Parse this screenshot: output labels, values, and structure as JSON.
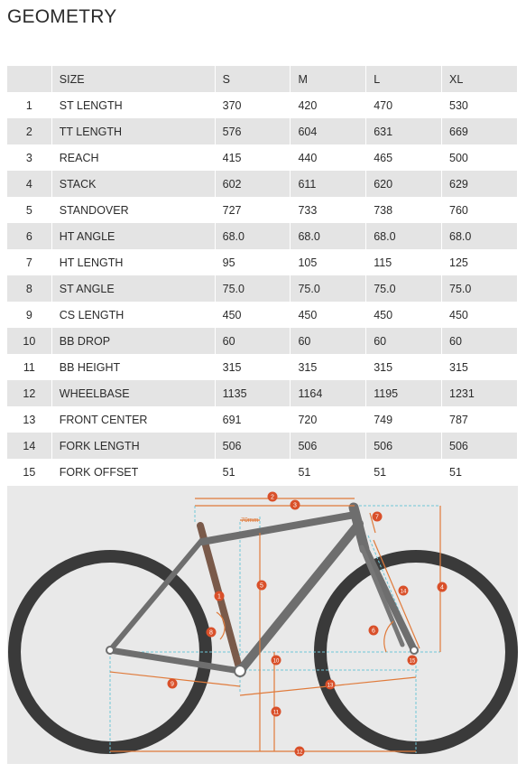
{
  "page": {
    "title": "GEOMETRY"
  },
  "table": {
    "headers": [
      "",
      "SIZE",
      "S",
      "M",
      "L",
      "XL"
    ],
    "rows": [
      {
        "no": "1",
        "label": "ST LENGTH",
        "values": [
          "370",
          "420",
          "470",
          "530"
        ]
      },
      {
        "no": "2",
        "label": "TT LENGTH",
        "values": [
          "576",
          "604",
          "631",
          "669"
        ]
      },
      {
        "no": "3",
        "label": "REACH",
        "values": [
          "415",
          "440",
          "465",
          "500"
        ]
      },
      {
        "no": "4",
        "label": "STACK",
        "values": [
          "602",
          "611",
          "620",
          "629"
        ]
      },
      {
        "no": "5",
        "label": "STANDOVER",
        "values": [
          "727",
          "733",
          "738",
          "760"
        ]
      },
      {
        "no": "6",
        "label": "HT ANGLE",
        "values": [
          "68.0",
          "68.0",
          "68.0",
          "68.0"
        ]
      },
      {
        "no": "7",
        "label": "HT LENGTH",
        "values": [
          "95",
          "105",
          "115",
          "125"
        ]
      },
      {
        "no": "8",
        "label": "ST ANGLE",
        "values": [
          "75.0",
          "75.0",
          "75.0",
          "75.0"
        ]
      },
      {
        "no": "9",
        "label": "CS LENGTH",
        "values": [
          "450",
          "450",
          "450",
          "450"
        ]
      },
      {
        "no": "10",
        "label": "BB DROP",
        "values": [
          "60",
          "60",
          "60",
          "60"
        ]
      },
      {
        "no": "11",
        "label": "BB HEIGHT",
        "values": [
          "315",
          "315",
          "315",
          "315"
        ]
      },
      {
        "no": "12",
        "label": "WHEELBASE",
        "values": [
          "1135",
          "1164",
          "1195",
          "1231"
        ]
      },
      {
        "no": "13",
        "label": "FRONT CENTER",
        "values": [
          "691",
          "720",
          "749",
          "787"
        ]
      },
      {
        "no": "14",
        "label": "FORK LENGTH",
        "values": [
          "506",
          "506",
          "506",
          "506"
        ]
      },
      {
        "no": "15",
        "label": "FORK OFFSET",
        "values": [
          "51",
          "51",
          "51",
          "51"
        ]
      }
    ]
  },
  "diagram": {
    "markers": [
      "1",
      "2",
      "3",
      "4",
      "5",
      "6",
      "7",
      "8",
      "9",
      "10",
      "11",
      "12",
      "13",
      "14",
      "15"
    ],
    "dimension_note": "70mm",
    "colors": {
      "marker": "#d9502a",
      "dimension": "#e07a3a",
      "guide": "#6ec6d6",
      "frame": "#6e6e6e",
      "tire": "#3a3a3a",
      "background": "#e9e9e9"
    }
  }
}
